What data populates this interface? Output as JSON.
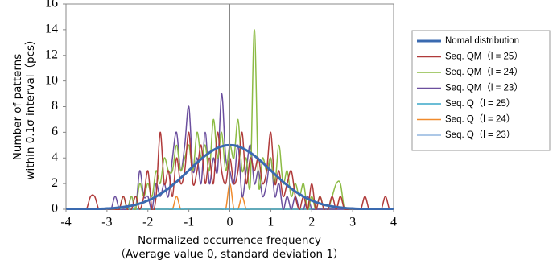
{
  "chart_data": {
    "type": "line",
    "ylabel": [
      "Number of patterns",
      "within 0.1σ interval（pcs）"
    ],
    "xlabel": [
      "Normalized occurrence frequency",
      "（Average value 0, standard deviation 1）"
    ],
    "xlim": [
      -4,
      4
    ],
    "xticks": [
      -4,
      -3,
      -2,
      -1,
      0,
      1,
      2,
      3,
      4
    ],
    "ylim": [
      0,
      16
    ],
    "yticks": [
      0,
      2,
      4,
      6,
      8,
      10,
      12,
      14,
      16
    ],
    "x": [
      -4.0,
      -3.9,
      -3.8,
      -3.7,
      -3.6,
      -3.5,
      -3.4,
      -3.3,
      -3.2,
      -3.1,
      -3.0,
      -2.9,
      -2.8,
      -2.7,
      -2.6,
      -2.5,
      -2.4,
      -2.3,
      -2.2,
      -2.1,
      -2.0,
      -1.9,
      -1.8,
      -1.7,
      -1.6,
      -1.5,
      -1.4,
      -1.3,
      -1.2,
      -1.1,
      -1.0,
      -0.9,
      -0.8,
      -0.7,
      -0.6,
      -0.5,
      -0.4,
      -0.3,
      -0.2,
      -0.1,
      0.0,
      0.1,
      0.2,
      0.3,
      0.4,
      0.5,
      0.6,
      0.7,
      0.8,
      0.9,
      1.0,
      1.1,
      1.2,
      1.3,
      1.4,
      1.5,
      1.6,
      1.7,
      1.8,
      1.9,
      2.0,
      2.1,
      2.2,
      2.3,
      2.4,
      2.5,
      2.6,
      2.7,
      2.8,
      2.9,
      3.0,
      3.1,
      3.2,
      3.3,
      3.4,
      3.5,
      3.6,
      3.7,
      3.8,
      3.9,
      4.0
    ],
    "series": [
      {
        "name": "Nomal distribution",
        "color": "#3a6ab0",
        "width": 3,
        "values": [
          0,
          0,
          0,
          0.01,
          0.01,
          0.01,
          0.02,
          0.02,
          0.03,
          0.04,
          0.06,
          0.07,
          0.1,
          0.13,
          0.17,
          0.22,
          0.28,
          0.35,
          0.44,
          0.55,
          0.68,
          0.82,
          0.99,
          1.18,
          1.39,
          1.62,
          1.88,
          2.14,
          2.43,
          2.73,
          3.03,
          3.33,
          3.63,
          3.91,
          4.18,
          4.41,
          4.61,
          4.78,
          4.9,
          4.98,
          5.0,
          4.98,
          4.9,
          4.78,
          4.61,
          4.41,
          4.18,
          3.91,
          3.63,
          3.33,
          3.03,
          2.73,
          2.43,
          2.14,
          1.88,
          1.62,
          1.39,
          1.18,
          0.99,
          0.82,
          0.68,
          0.55,
          0.44,
          0.35,
          0.28,
          0.22,
          0.17,
          0.13,
          0.1,
          0.07,
          0.06,
          0.04,
          0.03,
          0.02,
          0.02,
          0.01,
          0.01,
          0.01,
          0,
          0,
          0
        ]
      },
      {
        "name": "Seq. QM（l = 25）",
        "color": "#b03a3a",
        "width": 1.5,
        "values": [
          0,
          0,
          0,
          0,
          0,
          0,
          1,
          1,
          0,
          0,
          0,
          0,
          0,
          0,
          1,
          0,
          0,
          1,
          0,
          1,
          3,
          0,
          1,
          6,
          2,
          3,
          1,
          4,
          2,
          3,
          6,
          2,
          3,
          5,
          2,
          4,
          2,
          6,
          3,
          2,
          4,
          2,
          3,
          6,
          2,
          4,
          3,
          4,
          2,
          3,
          6,
          2,
          3,
          1,
          2,
          3,
          1,
          0,
          1,
          0,
          2,
          0,
          1,
          0,
          0,
          1,
          0,
          1,
          0,
          0,
          0,
          0,
          0,
          1,
          0,
          0,
          0,
          0,
          1,
          0,
          0
        ]
      },
      {
        "name": "Seq. QM（l = 24）",
        "color": "#8cbb44",
        "width": 1.5,
        "values": [
          0,
          0,
          0,
          0,
          0,
          0,
          0,
          0,
          0,
          0,
          0,
          0,
          0,
          0,
          1,
          0,
          1,
          0,
          2,
          1,
          2,
          1,
          3,
          2,
          4,
          3,
          3,
          5,
          3,
          4,
          5,
          3,
          6,
          4,
          5,
          3,
          7,
          4,
          6,
          3,
          5,
          4,
          7,
          3,
          4,
          2,
          14,
          2,
          4,
          3,
          4,
          2,
          5,
          2,
          3,
          1,
          2,
          1,
          2,
          0,
          1,
          0,
          1,
          0,
          0,
          1,
          2,
          2,
          0,
          0,
          0,
          0,
          0,
          0,
          0,
          0,
          0,
          0,
          0,
          0,
          0
        ]
      },
      {
        "name": "Seq. QM（l = 23）",
        "color": "#6b4f9e",
        "width": 1.5,
        "values": [
          0,
          0,
          0,
          0,
          0,
          0,
          0,
          0,
          0,
          0,
          0,
          0,
          1,
          0,
          0,
          0,
          1,
          0,
          3,
          1,
          1,
          0,
          2,
          1,
          2,
          1,
          4,
          6,
          3,
          5,
          8,
          3,
          4,
          2,
          6,
          2,
          4,
          3,
          9,
          4,
          3,
          2,
          5,
          1,
          3,
          5,
          2,
          3,
          1,
          2,
          4,
          1,
          2,
          0,
          1,
          0,
          1,
          0,
          0,
          1,
          0,
          0,
          0,
          0,
          0,
          0,
          0,
          0,
          0,
          0,
          0,
          0,
          0,
          0,
          0,
          0,
          0,
          0,
          0,
          0,
          0
        ]
      },
      {
        "name": "Seq. Q（l = 25）",
        "color": "#3aa7c9",
        "width": 1.5,
        "values": [
          0,
          0,
          0,
          0,
          0,
          0,
          0,
          0,
          0,
          0,
          0,
          0,
          0,
          0,
          0,
          0,
          0,
          0,
          0,
          0,
          0,
          0,
          0,
          0,
          0,
          0,
          0,
          0,
          0,
          0,
          0,
          0,
          0,
          0,
          0,
          0,
          0,
          0,
          0,
          0,
          0,
          0,
          0,
          0,
          0,
          0,
          0,
          0,
          0,
          0,
          0,
          0,
          0,
          0,
          0,
          0,
          0,
          0,
          0,
          0,
          0,
          0,
          0,
          0,
          0,
          0,
          0,
          0,
          0,
          0,
          0,
          0,
          0,
          0,
          0,
          0,
          0,
          0,
          0,
          0,
          0
        ]
      },
      {
        "name": "Seq. Q（l = 24）",
        "color": "#f08a2c",
        "width": 1.5,
        "values": [
          0,
          0,
          0,
          0,
          0,
          0,
          0,
          0,
          0,
          0,
          0,
          0,
          0,
          0,
          0,
          0,
          0,
          0,
          0,
          0,
          0,
          0,
          0,
          0,
          0,
          0,
          0,
          1,
          0,
          0,
          0,
          0,
          0,
          0,
          0,
          0,
          0,
          0,
          0,
          0,
          2,
          0,
          0,
          1,
          0,
          0,
          0,
          0,
          0,
          0,
          0,
          0,
          0,
          0,
          0,
          0,
          0,
          0,
          0,
          0,
          0,
          0,
          0,
          0,
          0,
          0,
          0,
          1,
          0,
          0,
          0,
          0,
          0,
          0,
          0,
          0,
          0,
          0,
          0,
          0,
          0
        ]
      },
      {
        "name": "Seq. Q（l = 23）",
        "color": "#92b6df",
        "width": 1.5,
        "values": [
          0,
          0,
          0,
          0,
          0,
          0,
          0,
          0,
          0,
          0,
          0,
          0,
          0,
          0,
          0,
          0,
          0,
          0,
          0,
          0,
          0,
          0,
          0,
          0,
          0,
          0,
          0,
          0,
          0,
          0,
          0,
          0,
          0,
          0,
          0,
          0,
          0,
          0,
          0,
          0,
          0,
          0,
          0,
          0,
          0,
          0,
          0,
          0,
          0,
          0,
          0,
          0,
          0,
          0,
          0,
          0,
          0,
          0,
          0,
          0,
          0,
          0,
          0,
          0,
          0,
          0,
          0,
          0,
          0,
          0,
          0,
          0,
          0,
          0,
          0,
          0,
          0,
          0,
          0,
          0,
          0
        ]
      }
    ]
  }
}
